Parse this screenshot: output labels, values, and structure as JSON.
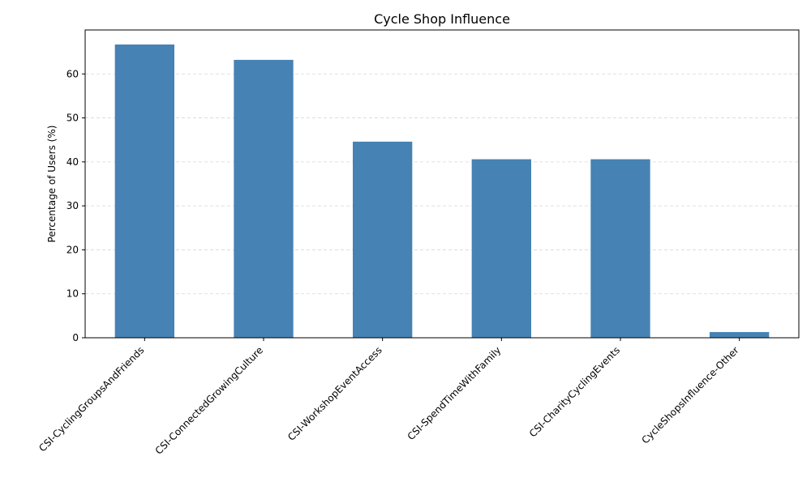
{
  "chart_data": {
    "type": "bar",
    "title": "Cycle Shop Influence",
    "xlabel": "",
    "ylabel": "Percentage of Users (%)",
    "ylim": [
      0,
      70
    ],
    "yticks": [
      0,
      10,
      20,
      30,
      40,
      50,
      60
    ],
    "grid": "y-dashed",
    "bar_color": "#4682b4",
    "categories": [
      "CSI-CyclingGroupsAndFriends",
      "CSI-ConnectedGrowingCulture",
      "CSI-WorkshopEventAccess",
      "CSI-SpendTimeWithFamily",
      "CSI-CharityCyclingEvents",
      "CycleShopsInfluence-Other"
    ],
    "values": [
      66.7,
      63.2,
      44.6,
      40.6,
      40.6,
      1.3
    ]
  }
}
